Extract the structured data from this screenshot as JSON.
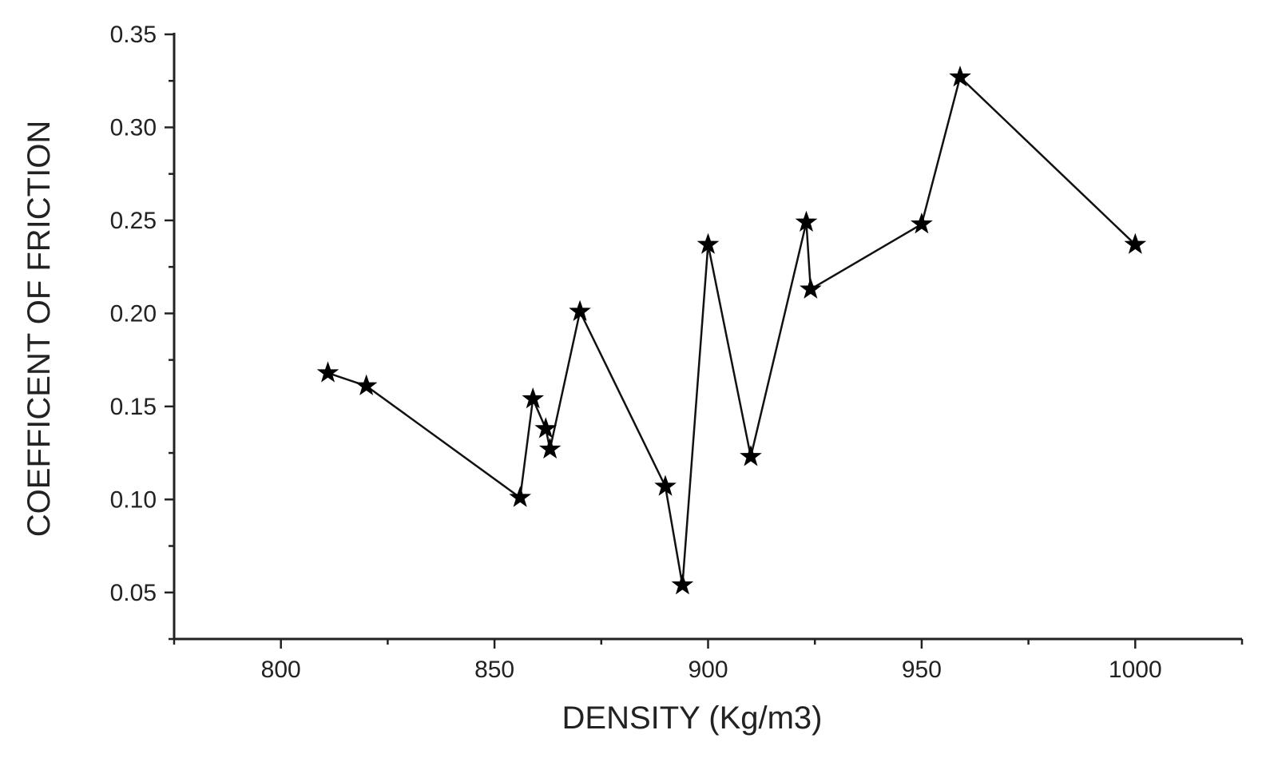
{
  "chart_data": {
    "type": "line",
    "title": "",
    "xlabel": "DENSITY (Kg/m3)",
    "ylabel": "COEFFICENT OF FRICTION",
    "xlim": [
      775,
      1025
    ],
    "ylim": [
      0.025,
      0.35
    ],
    "x_ticks": [
      800,
      850,
      900,
      950,
      1000
    ],
    "x_tick_labels": [
      "800",
      "850",
      "900",
      "950",
      "1000"
    ],
    "x_minor_ticks": [
      775,
      825,
      875,
      925,
      975,
      1025
    ],
    "y_ticks": [
      0.05,
      0.1,
      0.15,
      0.2,
      0.25,
      0.3,
      0.35
    ],
    "y_tick_labels": [
      "0.05",
      "0.10",
      "0.15",
      "0.20",
      "0.25",
      "0.30",
      "0.35"
    ],
    "y_minor_ticks": [
      0.025,
      0.075,
      0.125,
      0.175,
      0.225,
      0.275,
      0.325
    ],
    "grid": false,
    "legend": "none",
    "marker": "star",
    "color": "#000000",
    "series": [
      {
        "x": [
          811,
          820,
          856,
          859,
          862,
          863,
          870,
          890,
          894,
          900,
          910,
          923,
          924,
          950,
          959,
          1000
        ],
        "y": [
          0.168,
          0.161,
          0.101,
          0.154,
          0.138,
          0.127,
          0.201,
          0.107,
          0.054,
          0.237,
          0.123,
          0.249,
          0.213,
          0.248,
          0.327,
          0.237
        ]
      }
    ]
  }
}
